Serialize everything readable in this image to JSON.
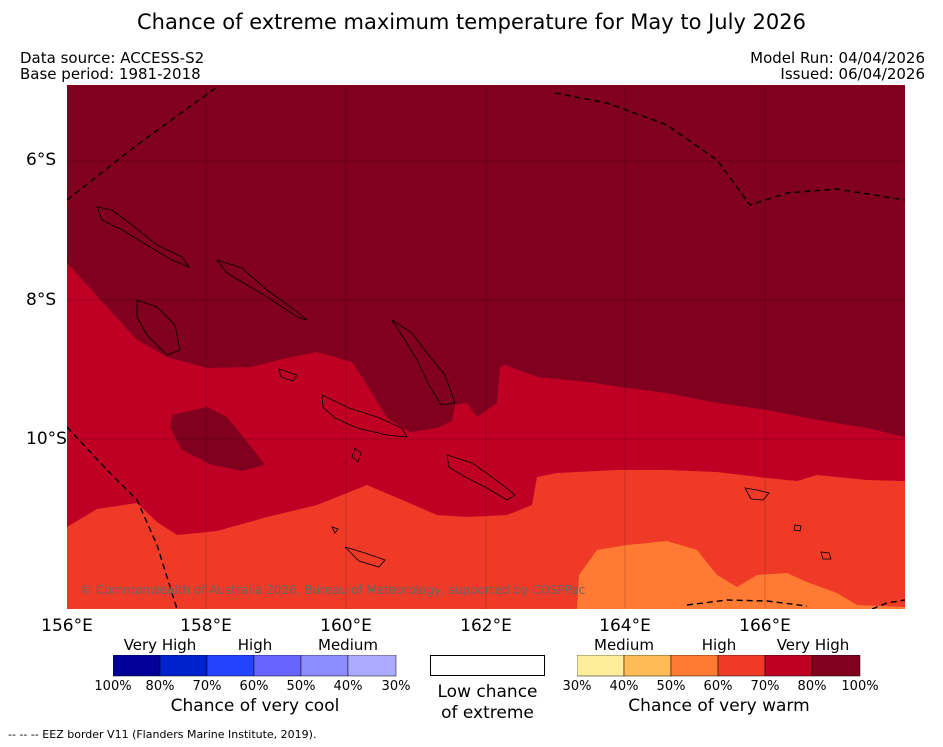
{
  "title": "Chance of extreme maximum temperature for May to July 2026",
  "data_source": "Data source: ACCESS-S2",
  "base_period": "Base period: 1981-2018",
  "model_run": "Model Run: 04/04/2026",
  "issued": "Issued: 06/04/2026",
  "copyright": "© Commonwealth of Australia 2026, Bureau of Meteorology, supported by COSPPac",
  "lat_labels": [
    "6°S",
    "8°S",
    "10°S"
  ],
  "lon_labels": [
    "156°E",
    "158°E",
    "160°E",
    "162°E",
    "164°E",
    "166°E"
  ],
  "cool_legend": {
    "categories": [
      "Very High",
      "High",
      "Medium"
    ],
    "ticks": [
      "100%",
      "80%",
      "70%",
      "60%",
      "50%",
      "40%",
      "30%"
    ],
    "colors": [
      "#000099",
      "#0022cc",
      "#2244ff",
      "#6666ff",
      "#8c8cff",
      "#aaaaff"
    ],
    "label": "Chance of very cool"
  },
  "low_chance": {
    "line1": "Low chance",
    "line2": "of extreme"
  },
  "warm_legend": {
    "categories": [
      "Medium",
      "High",
      "Very High"
    ],
    "ticks": [
      "30%",
      "40%",
      "50%",
      "60%",
      "70%",
      "80%",
      "100%"
    ],
    "colors": [
      "#ffee99",
      "#ffbb55",
      "#ff7a33",
      "#ee3a26",
      "#bf0024",
      "#80001e"
    ],
    "label": "Chance of very warm"
  },
  "eez_note": "--  --  -- EEZ border V11 (Flanders Marine Institute, 2019)."
}
